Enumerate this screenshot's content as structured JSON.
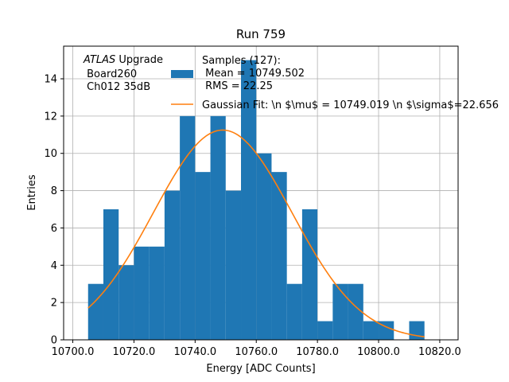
{
  "chart_data": {
    "type": "bar",
    "title": "Run 759",
    "xlabel": "Energy [ADC Counts]",
    "ylabel": "Entries",
    "xlim": [
      10697,
      10826
    ],
    "ylim": [
      0,
      15.75
    ],
    "grid": true,
    "x_ticks": [
      10700,
      10720,
      10740,
      10760,
      10780,
      10800,
      10820
    ],
    "x_tick_labels": [
      "10700.0",
      "10720.0",
      "10740.0",
      "10760.0",
      "10780.0",
      "10800.0",
      "10820.0"
    ],
    "y_ticks": [
      0,
      2,
      4,
      6,
      8,
      10,
      12,
      14
    ],
    "y_tick_labels": [
      "0",
      "2",
      "4",
      "6",
      "8",
      "10",
      "12",
      "14"
    ],
    "bin_width": 5,
    "bins": [
      {
        "x0": 10705,
        "count": 3
      },
      {
        "x0": 10710,
        "count": 7
      },
      {
        "x0": 10715,
        "count": 4
      },
      {
        "x0": 10720,
        "count": 5
      },
      {
        "x0": 10725,
        "count": 5
      },
      {
        "x0": 10730,
        "count": 8
      },
      {
        "x0": 10735,
        "count": 12
      },
      {
        "x0": 10740,
        "count": 9
      },
      {
        "x0": 10745,
        "count": 12
      },
      {
        "x0": 10750,
        "count": 8
      },
      {
        "x0": 10755,
        "count": 15
      },
      {
        "x0": 10760,
        "count": 10
      },
      {
        "x0": 10765,
        "count": 9
      },
      {
        "x0": 10770,
        "count": 3
      },
      {
        "x0": 10775,
        "count": 7
      },
      {
        "x0": 10780,
        "count": 1
      },
      {
        "x0": 10785,
        "count": 3
      },
      {
        "x0": 10790,
        "count": 3
      },
      {
        "x0": 10795,
        "count": 1
      },
      {
        "x0": 10800,
        "count": 1
      },
      {
        "x0": 10805,
        "count": 0
      },
      {
        "x0": 10810,
        "count": 1
      }
    ],
    "fit": {
      "mean": 10749.019,
      "sigma": 22.656,
      "amplitude": 11.25,
      "x_range": [
        10705,
        10815
      ]
    },
    "colors": {
      "bars": "#1f77b4",
      "fit": "#ff7f0e"
    },
    "legend": {
      "placement": "top-center",
      "entries": [
        {
          "series": "histogram",
          "label_lines": [
            "Samples (127):",
            " Mean = 10749.502",
            " RMS = 22.25"
          ]
        },
        {
          "series": "fit",
          "label_lines": [
            "Gaussian Fit: \\n $\\mu$ = 10749.019 \\n $\\sigma$=22.656"
          ]
        }
      ]
    },
    "annotation": {
      "atlas": "ATLAS",
      "upgrade": " Upgrade",
      "lines": [
        " Board260",
        " Ch012 35dB"
      ]
    }
  }
}
